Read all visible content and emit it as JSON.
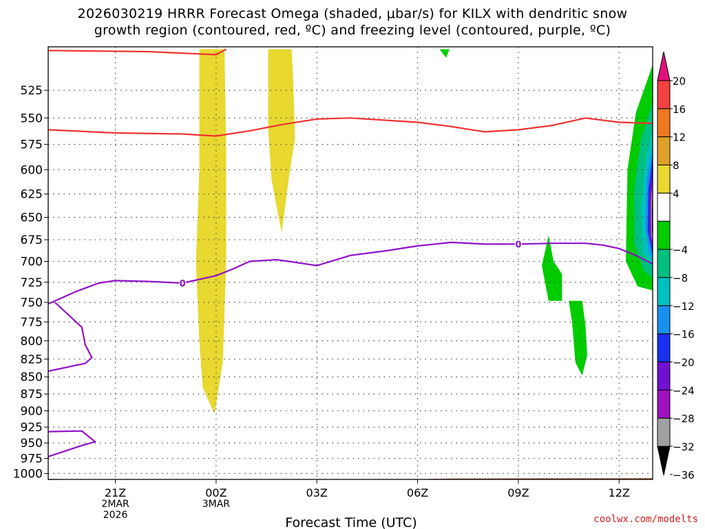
{
  "titles": {
    "line1": "2026030219 HRRR Forecast Omega (shaded, μbar/s) for KILX with dendritic snow",
    "line2": "growth region (contoured, red, ºC) and freezing level (contoured, purple, ºC)"
  },
  "watermark": "coolwx.com/modelts",
  "chart_data": {
    "type": "contour",
    "title": "2026030219 HRRR Forecast Omega (shaded, μbar/s) for KILX with dendritic snow growth region (contoured, red, ºC) and freezing level (contoured, purple, ºC)",
    "xlabel": "Forecast Time (UTC)",
    "ylabel": "",
    "x_range_hours_after_19Z": [
      0,
      18
    ],
    "y_range_mb": [
      1010,
      488
    ],
    "y_scale": "log-pressure",
    "y_ticks": [
      525,
      550,
      575,
      600,
      625,
      650,
      675,
      700,
      725,
      750,
      775,
      800,
      825,
      850,
      875,
      900,
      925,
      950,
      975,
      1000
    ],
    "x_ticks": [
      {
        "h": 2,
        "label": "21Z",
        "sub": [
          "2MAR",
          "2026"
        ]
      },
      {
        "h": 5,
        "label": "00Z",
        "sub": [
          "3MAR"
        ]
      },
      {
        "h": 8,
        "label": "03Z",
        "sub": []
      },
      {
        "h": 11,
        "label": "06Z",
        "sub": []
      },
      {
        "h": 14,
        "label": "09Z",
        "sub": []
      },
      {
        "h": 17,
        "label": "12Z",
        "sub": []
      }
    ],
    "grid": true,
    "colorbar": {
      "labels": [
        "20",
        "16",
        "12",
        "8",
        "4",
        "−4",
        "−8",
        "−12",
        "−16",
        "−20",
        "−24",
        "−28",
        "−32",
        "−36"
      ],
      "colors": [
        "#e4107a",
        "#f44040",
        "#f07820",
        "#e0a028",
        "#e8d830",
        "#ffffff",
        "#00cc00",
        "#00c080",
        "#00c0c0",
        "#1890f0",
        "#1830f0",
        "#7010d0",
        "#a010c0",
        "#a0a0a0",
        "#000000"
      ]
    },
    "omega_regions": [
      {
        "name": "yellow-column-00Z",
        "color": "#e8d830",
        "points": [
          [
            4.5,
            490
          ],
          [
            4.5,
            600
          ],
          [
            4.4,
            700
          ],
          [
            4.5,
            800
          ],
          [
            4.6,
            865
          ],
          [
            4.95,
            905
          ],
          [
            5.2,
            830
          ],
          [
            5.3,
            700
          ],
          [
            5.3,
            580
          ],
          [
            5.25,
            490
          ]
        ]
      },
      {
        "name": "yellow-column-02Z",
        "color": "#e8d830",
        "points": [
          [
            6.55,
            490
          ],
          [
            6.55,
            560
          ],
          [
            6.65,
            610
          ],
          [
            6.95,
            667
          ],
          [
            7.2,
            600
          ],
          [
            7.35,
            570
          ],
          [
            7.3,
            520
          ],
          [
            7.25,
            490
          ]
        ]
      },
      {
        "name": "green-top-07Z",
        "color": "#00cc00",
        "points": [
          [
            11.65,
            490
          ],
          [
            11.85,
            497
          ],
          [
            11.95,
            490
          ]
        ]
      },
      {
        "name": "green-10Z-upper",
        "color": "#00cc00",
        "points": [
          [
            14.7,
            705
          ],
          [
            14.9,
            670
          ],
          [
            15.05,
            700
          ],
          [
            15.3,
            715
          ],
          [
            15.3,
            748
          ],
          [
            14.9,
            748
          ]
        ]
      },
      {
        "name": "green-11Z-lower",
        "color": "#00cc00",
        "points": [
          [
            15.5,
            748
          ],
          [
            15.9,
            748
          ],
          [
            16.0,
            780
          ],
          [
            16.05,
            820
          ],
          [
            15.9,
            848
          ],
          [
            15.7,
            830
          ],
          [
            15.6,
            775
          ]
        ]
      },
      {
        "name": "green-12Z-edge",
        "color": "#00cc00",
        "points": [
          [
            18,
            503
          ],
          [
            17.5,
            545
          ],
          [
            17.25,
            600
          ],
          [
            17.2,
            700
          ],
          [
            17.55,
            730
          ],
          [
            18,
            735
          ]
        ]
      },
      {
        "name": "teal-12Z-edge",
        "color": "#00c080",
        "points": [
          [
            18,
            535
          ],
          [
            17.65,
            570
          ],
          [
            17.45,
            620
          ],
          [
            17.45,
            680
          ],
          [
            17.75,
            712
          ],
          [
            18,
            720
          ]
        ]
      },
      {
        "name": "cyan-12Z-edge",
        "color": "#00c0c0",
        "points": [
          [
            18,
            560
          ],
          [
            17.8,
            590
          ],
          [
            17.65,
            640
          ],
          [
            17.7,
            690
          ],
          [
            18,
            705
          ]
        ]
      },
      {
        "name": "blue-12Z-edge",
        "color": "#1890f0",
        "points": [
          [
            18,
            575
          ],
          [
            17.82,
            610
          ],
          [
            17.78,
            660
          ],
          [
            17.9,
            690
          ],
          [
            18,
            698
          ]
        ]
      },
      {
        "name": "navy-12Z-edge",
        "color": "#1830f0",
        "points": [
          [
            18,
            585
          ],
          [
            17.87,
            620
          ],
          [
            17.85,
            665
          ],
          [
            18,
            693
          ]
        ]
      },
      {
        "name": "purple-12Z-edge",
        "color": "#7010d0",
        "points": [
          [
            18,
            595
          ],
          [
            17.9,
            628
          ],
          [
            17.9,
            668
          ],
          [
            18,
            688
          ]
        ]
      },
      {
        "name": "magenta-12Z-edge",
        "color": "#a010c0",
        "points": [
          [
            18,
            603
          ],
          [
            17.93,
            632
          ],
          [
            17.93,
            670
          ],
          [
            18,
            685
          ]
        ]
      },
      {
        "name": "gray-12Z-edge",
        "color": "#a0a0a0",
        "points": [
          [
            18,
            610
          ],
          [
            17.95,
            635
          ],
          [
            17.96,
            670
          ],
          [
            18,
            680
          ]
        ]
      },
      {
        "name": "black-12Z-edge",
        "color": "#000000",
        "points": [
          [
            18,
            618
          ],
          [
            17.98,
            640
          ],
          [
            17.98,
            665
          ],
          [
            18,
            673
          ]
        ]
      }
    ],
    "series": [
      {
        "name": "dendritic -12C (red)",
        "color": "#f03030",
        "points": [
          [
            0,
            491
          ],
          [
            3,
            492
          ],
          [
            5,
            494.5
          ],
          [
            5.3,
            490
          ]
        ]
      },
      {
        "name": "dendritic -17C (red)",
        "color": "#f03030",
        "points": [
          [
            0,
            561
          ],
          [
            2,
            564
          ],
          [
            4,
            565
          ],
          [
            5,
            567
          ],
          [
            6,
            562
          ],
          [
            7,
            556
          ],
          [
            8,
            551
          ],
          [
            9,
            550
          ],
          [
            11,
            554
          ],
          [
            12,
            558
          ],
          [
            13,
            563
          ],
          [
            14,
            561
          ],
          [
            15,
            557
          ],
          [
            16,
            550
          ],
          [
            17,
            554
          ],
          [
            18,
            555
          ]
        ]
      },
      {
        "name": "freezing level 0C (purple)",
        "color": "#9010c8",
        "points": [
          [
            0,
            752
          ],
          [
            0.8,
            737
          ],
          [
            1.5,
            726
          ],
          [
            2,
            723
          ],
          [
            3,
            724
          ],
          [
            4,
            726
          ],
          [
            5,
            717
          ],
          [
            5.5,
            709
          ],
          [
            6,
            700
          ],
          [
            6.8,
            698
          ],
          [
            7.5,
            702
          ],
          [
            8,
            705
          ],
          [
            9,
            693
          ],
          [
            10,
            688
          ],
          [
            11,
            682
          ],
          [
            12,
            678
          ],
          [
            13,
            680
          ],
          [
            14,
            680
          ],
          [
            15,
            679
          ],
          [
            16,
            679
          ],
          [
            16.5,
            681
          ],
          [
            17,
            685
          ],
          [
            17.5,
            693
          ],
          [
            18,
            703
          ]
        ]
      },
      {
        "name": "0C contour lower loop A (purple)",
        "color": "#9010c8",
        "points": [
          [
            0.2,
            750
          ],
          [
            1,
            782
          ],
          [
            1.1,
            805
          ],
          [
            1.3,
            823
          ],
          [
            1.1,
            831
          ],
          [
            0,
            842
          ]
        ]
      },
      {
        "name": "0C contour lower loop B (purple)",
        "color": "#9010c8",
        "points": [
          [
            0,
            932
          ],
          [
            1,
            931
          ],
          [
            1.4,
            948
          ],
          [
            1,
            954
          ],
          [
            0,
            972
          ]
        ]
      }
    ],
    "annotations": [
      {
        "text": "0",
        "h": 4.0,
        "p": 726
      },
      {
        "text": "0",
        "h": 14.0,
        "p": 680
      }
    ],
    "terrain": {
      "color": "#a0522d",
      "surface_mb": [
        [
          0,
          1011
        ],
        [
          2,
          1009.5
        ],
        [
          5,
          1010
        ],
        [
          8,
          1009.5
        ],
        [
          11,
          1009.5
        ],
        [
          12,
          1008.5
        ],
        [
          18,
          1008
        ]
      ]
    }
  }
}
